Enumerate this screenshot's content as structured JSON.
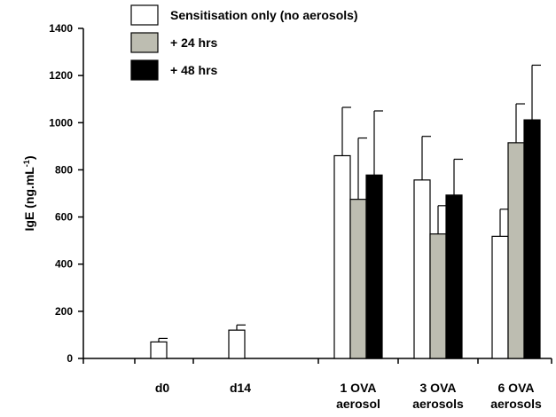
{
  "chart_data": {
    "type": "bar",
    "ylabel": "IgE (ng.mL",
    "ylabel_sup": "-1",
    "ylabel_close": ")",
    "ylim": [
      0,
      1400
    ],
    "yticks": [
      0,
      200,
      400,
      600,
      800,
      1000,
      1200,
      1400
    ],
    "legend_position": "top",
    "categories": [
      {
        "lines": [
          "d0"
        ]
      },
      {
        "lines": [
          "d14"
        ]
      },
      {
        "lines": [
          "1 OVA",
          "aerosol"
        ]
      },
      {
        "lines": [
          "3 OVA",
          "aerosols"
        ]
      },
      {
        "lines": [
          "6 OVA",
          "aerosols"
        ]
      }
    ],
    "series": [
      {
        "name": "Sensitisation only (no aerosols)",
        "color": "#ffffff",
        "values": [
          70,
          120,
          860,
          757,
          518
        ],
        "errors": [
          15,
          22,
          205,
          185,
          115
        ]
      },
      {
        "name": "+ 24 hrs",
        "color": "#bdbdb1",
        "values": [
          null,
          null,
          675,
          528,
          915
        ],
        "errors": [
          null,
          null,
          260,
          120,
          165
        ]
      },
      {
        "name": "+ 48 hrs",
        "color": "#000000",
        "values": [
          null,
          null,
          778,
          693,
          1012
        ],
        "errors": [
          null,
          null,
          272,
          152,
          232
        ]
      }
    ]
  }
}
